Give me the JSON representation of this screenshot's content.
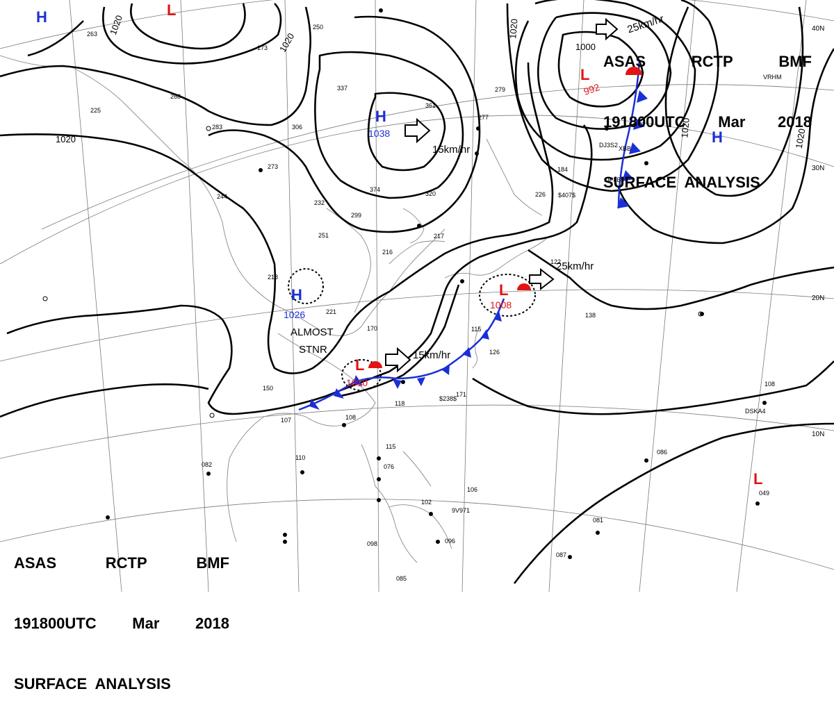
{
  "header": {
    "line1": [
      "ASAS",
      "RCTP",
      "BMF"
    ],
    "line2": [
      "191800UTC",
      "Mar",
      "2018"
    ],
    "line3": "SURFACE  ANALYSIS"
  },
  "isobar_labels": [
    "1020",
    "1020",
    "1020",
    "1020",
    "1020",
    "1020",
    "1000"
  ],
  "centers": {
    "high": [
      {
        "symbol": "H",
        "pressure": "1038"
      },
      {
        "symbol": "H",
        "pressure": "1026"
      },
      {
        "symbol": "H",
        "pressure": ""
      },
      {
        "symbol": "H",
        "pressure": ""
      }
    ],
    "low": [
      {
        "symbol": "L",
        "pressure": "992"
      },
      {
        "symbol": "L",
        "pressure": "1008"
      },
      {
        "symbol": "L",
        "pressure": "1010"
      },
      {
        "symbol": "L",
        "pressure": ""
      },
      {
        "symbol": "L",
        "pressure": ""
      }
    ]
  },
  "motion": [
    "15km/hr",
    "25km/hr",
    "15km/hr",
    "25km/hr"
  ],
  "notes": {
    "stationary_line1": "ALMOST",
    "stationary_line2": "STNR"
  },
  "lat_labels": [
    "40N",
    "30N",
    "20N",
    "10N"
  ],
  "stations": [
    "263",
    "250",
    "173",
    "268",
    "225",
    "283",
    "306",
    "337",
    "361",
    "277",
    "279",
    "273",
    "232",
    "251",
    "374",
    "320",
    "299",
    "244",
    "218",
    "221",
    "216",
    "217",
    "170",
    "150",
    "107",
    "082",
    "110",
    "108",
    "118",
    "126",
    "171",
    "115",
    "138",
    "108",
    "086",
    "049",
    "087",
    "081",
    "102",
    "106",
    "098",
    "096",
    "085",
    "115",
    "076",
    "184",
    "226",
    "122",
    "$238$",
    "$407$",
    "JP8B",
    "DJ3S2",
    "XBB",
    "VRHM",
    "DSKA4",
    "9V971"
  ],
  "colors": {
    "high": "#1a2fd6",
    "low": "#e21414",
    "isobar": "#000000",
    "coast": "#8a8a8a",
    "grid": "#7a7a7a"
  }
}
